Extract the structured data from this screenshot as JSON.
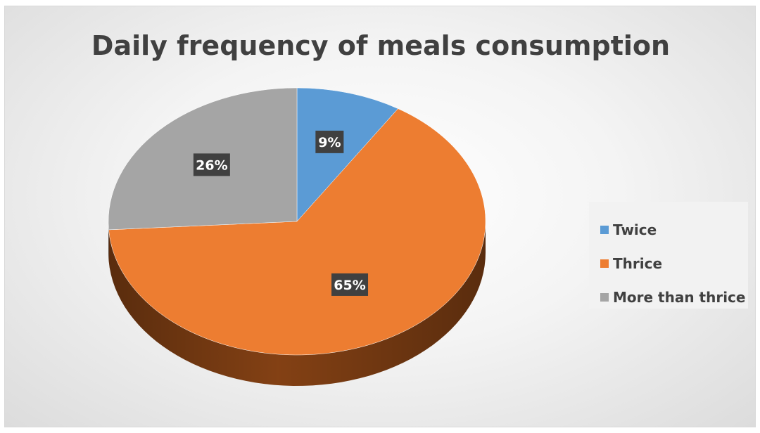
{
  "chart_data": {
    "type": "pie",
    "title": "Daily frequency of meals consumption",
    "categories": [
      "Twice",
      "Thrice",
      "More than thrice"
    ],
    "values": [
      9,
      65,
      26
    ],
    "data_labels": [
      "9%",
      "65%",
      "26%"
    ],
    "colors": [
      "#5b9bd5",
      "#ed7d31",
      "#a5a5a5"
    ],
    "side_colors": [
      "#2e6c9e",
      "#8a4415",
      "#6a6a6a"
    ],
    "style": "3d",
    "legend_position": "right"
  }
}
